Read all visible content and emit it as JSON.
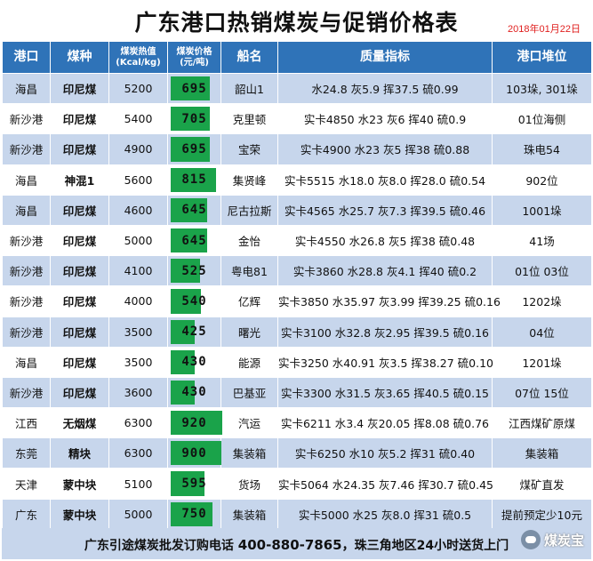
{
  "title": "广东港口热销煤炭与促销价格表",
  "date": "2018年01月22日",
  "columns": {
    "port": "港口",
    "coal_type": "煤种",
    "heat_line1": "煤炭热值",
    "heat_line2": "(Kcal/kg)",
    "price_line1": "煤炭价格",
    "price_line2": "(元/吨)",
    "ship": "船名",
    "quality": "质量指标",
    "pile": "港口堆位"
  },
  "colors": {
    "header": "#2f73b8",
    "row_alt": "#c7d6ec",
    "price_bar": "#1aa34a"
  },
  "price_scale_max": 920,
  "rows": [
    {
      "port": "海昌",
      "coal_type": "印尼煤",
      "heat": "5200",
      "price": "695",
      "price_value": 695,
      "ship": "韶山1",
      "quality": "水24.8 灰5.9 挥37.5 硫0.99",
      "pile": "103垛, 301垛"
    },
    {
      "port": "新沙港",
      "coal_type": "印尼煤",
      "heat": "5400",
      "price": "705",
      "price_value": 705,
      "ship": "克里顿",
      "quality": "实卡4850 水23 灰6 挥40 硫0.9",
      "pile": "01位海侧"
    },
    {
      "port": "新沙港",
      "coal_type": "印尼煤",
      "heat": "4900",
      "price": "695",
      "price_value": 695,
      "ship": "宝荣",
      "quality": "实卡4900 水23 灰5 挥38 硫0.88",
      "pile": "珠电54"
    },
    {
      "port": "海昌",
      "coal_type": "神混1",
      "heat": "5600",
      "price": "815",
      "price_value": 815,
      "ship": "集贤峰",
      "quality": "实卡5515 水18.0 灰8.0 挥28.0 硫0.54",
      "pile": "902位"
    },
    {
      "port": "海昌",
      "coal_type": "印尼煤",
      "heat": "4600",
      "price": "645",
      "price_value": 645,
      "ship": "尼古拉斯",
      "quality": "实卡4565 水25.7 灰7.3 挥39.5 硫0.46",
      "pile": "1001垛"
    },
    {
      "port": "新沙港",
      "coal_type": "印尼煤",
      "heat": "5000",
      "price": "645",
      "price_value": 645,
      "ship": "金怡",
      "quality": "实卡4550 水26.8 灰5 挥38 硫0.48",
      "pile": "41场"
    },
    {
      "port": "新沙港",
      "coal_type": "印尼煤",
      "heat": "4100",
      "price": "525",
      "price_value": 525,
      "ship": "粤电81",
      "quality": "实卡3860 水28.8 灰4.1 挥40 硫0.2",
      "pile": "01位 03位"
    },
    {
      "port": "新沙港",
      "coal_type": "印尼煤",
      "heat": "4000",
      "price": "540",
      "price_value": 540,
      "ship": "亿辉",
      "quality": "实卡3850 水35.97 灰3.99 挥39.25 硫0.16",
      "pile": "1202垛"
    },
    {
      "port": "新沙港",
      "coal_type": "印尼煤",
      "heat": "3500",
      "price": "425",
      "price_value": 425,
      "ship": "曙光",
      "quality": "实卡3100 水32.8 灰2.95 挥39.5 硫0.16",
      "pile": "04位"
    },
    {
      "port": "海昌",
      "coal_type": "印尼煤",
      "heat": "3500",
      "price": "430",
      "price_value": 430,
      "ship": "能源",
      "quality": "实卡3250 水40.91 灰3.5 挥38.27 硫0.10",
      "pile": "1201垛"
    },
    {
      "port": "新沙港",
      "coal_type": "印尼煤",
      "heat": "3600",
      "price": "430",
      "price_value": 430,
      "ship": "巴基亚",
      "quality": "实卡3300 水31.5 灰3.65 挥40.5 硫0.15",
      "pile": "07位 15位"
    },
    {
      "port": "江西",
      "coal_type": "无烟煤",
      "heat": "6300",
      "price": "920",
      "price_value": 920,
      "ship": "汽运",
      "quality": "实卡6211 水3.4 灰20.05 挥8.08 硫0.76",
      "pile": "江西煤矿原煤"
    },
    {
      "port": "东莞",
      "coal_type": "精块",
      "heat": "6300",
      "price": "900",
      "price_value": 900,
      "ship": "集装箱",
      "quality": "实卡6250 水10 灰5.2 挥31 硫0.40",
      "pile": "集装箱"
    },
    {
      "port": "天津",
      "coal_type": "蒙中块",
      "heat": "5100",
      "price": "595",
      "price_value": 595,
      "ship": "货场",
      "quality": "实卡5064 水24.35 灰7.46 挥30.7 硫0.45",
      "pile": "煤矿直发"
    },
    {
      "port": "广东",
      "coal_type": "蒙中块",
      "heat": "5000",
      "price": "750",
      "price_value": 750,
      "ship": "集装箱",
      "quality": "实卡5000 水25 灰8.0 挥31 硫0.5",
      "pile": "提前预定少10元"
    }
  ],
  "footer": {
    "text_before": "广东引途煤炭批发订购电话 ",
    "phone": "400-880-7865",
    "text_after": "，珠三角地区24小时送货上门",
    "brand": "煤炭宝",
    "brand_icon": "wechat-icon"
  }
}
